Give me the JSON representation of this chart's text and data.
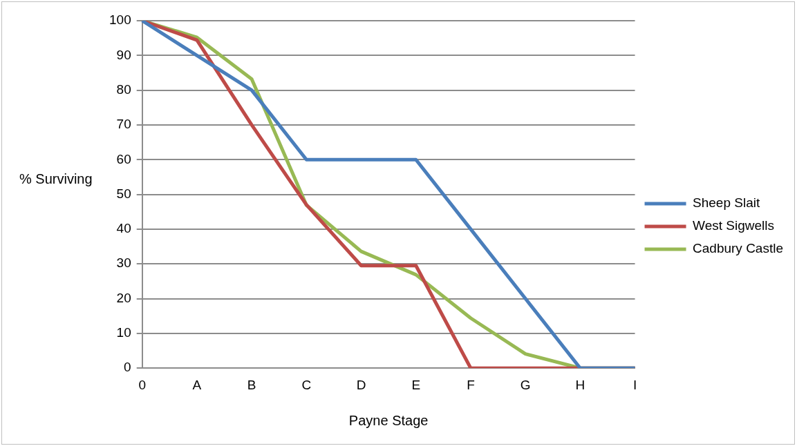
{
  "chart_data": {
    "type": "line",
    "xlabel": "Payne Stage",
    "ylabel": "% Surviving",
    "categories": [
      "0",
      "A",
      "B",
      "C",
      "D",
      "E",
      "F",
      "G",
      "H",
      "I"
    ],
    "series": [
      {
        "name": "Sheep Slait",
        "color": "#4a7ebb",
        "values": [
          100,
          90,
          80,
          60,
          60,
          60,
          40,
          20,
          0,
          0
        ]
      },
      {
        "name": "West Sigwells",
        "color": "#be4b48",
        "values": [
          100,
          94.4,
          70,
          47,
          29.5,
          29.5,
          0,
          0,
          0,
          0
        ]
      },
      {
        "name": "Cadbury Castle",
        "color": "#98b954",
        "values": [
          100,
          95.2,
          83.2,
          46.9,
          33.6,
          26.9,
          14.4,
          4.1,
          0,
          0
        ]
      }
    ],
    "ylim": [
      0,
      100
    ],
    "yticks": [
      0,
      10,
      20,
      30,
      40,
      50,
      60,
      70,
      80,
      90,
      100
    ],
    "grid": "y",
    "legend": "right",
    "marker": "none",
    "line_style": "solid"
  }
}
